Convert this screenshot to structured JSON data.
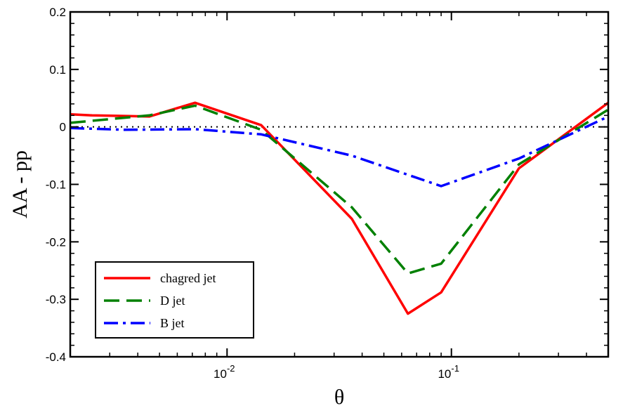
{
  "chart_data": {
    "type": "line",
    "xlabel": "θ",
    "ylabel": "AA - pp",
    "xscale": "log",
    "xlim": [
      0.002,
      0.5
    ],
    "ylim": [
      -0.4,
      0.2
    ],
    "yticks": [
      -0.4,
      -0.3,
      -0.2,
      -0.1,
      0,
      0.1,
      0.2
    ],
    "ytick_labels": [
      "-0.4",
      "-0.3",
      "-0.2",
      "-0.1",
      "0",
      "0.1",
      "0.2"
    ],
    "xticks": [
      {
        "value": 0.01,
        "base": "10",
        "exp": "-2"
      },
      {
        "value": 0.1,
        "base": "10",
        "exp": "-1"
      }
    ],
    "reference_line": {
      "y": 0,
      "style": "dotted",
      "color": "#000000"
    },
    "legend_position": "bottom-left",
    "series": [
      {
        "name": "chagred jet",
        "color": "#ff0000",
        "style": "solid",
        "x": [
          0.002,
          0.0025,
          0.0035,
          0.0045,
          0.0072,
          0.0142,
          0.036,
          0.064,
          0.09,
          0.2,
          0.5
        ],
        "y": [
          0.022,
          0.02,
          0.019,
          0.018,
          0.042,
          0.003,
          -0.16,
          -0.325,
          -0.288,
          -0.072,
          0.042
        ]
      },
      {
        "name": "D jet",
        "color": "#008000",
        "style": "dashed",
        "x": [
          0.002,
          0.0045,
          0.0072,
          0.0142,
          0.036,
          0.064,
          0.09,
          0.2,
          0.5
        ],
        "y": [
          0.007,
          0.02,
          0.037,
          -0.005,
          -0.14,
          -0.255,
          -0.238,
          -0.065,
          0.03
        ]
      },
      {
        "name": "B jet",
        "color": "#0000ff",
        "style": "dashdot",
        "x": [
          0.002,
          0.0035,
          0.0072,
          0.0142,
          0.036,
          0.09,
          0.2,
          0.5
        ],
        "y": [
          -0.002,
          -0.005,
          -0.004,
          -0.013,
          -0.05,
          -0.103,
          -0.055,
          0.018
        ]
      }
    ]
  }
}
